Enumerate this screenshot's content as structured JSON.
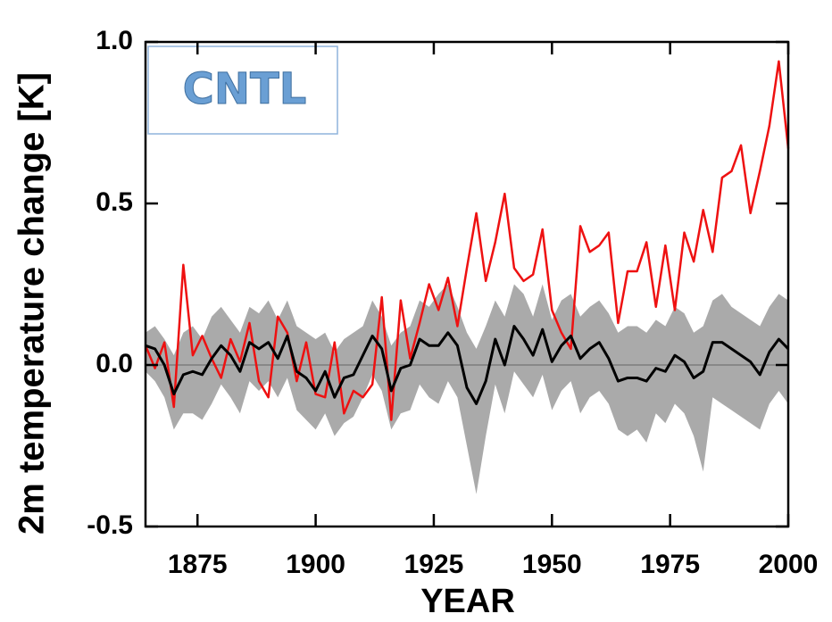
{
  "chart_data": {
    "type": "line",
    "annotation": "CNTL",
    "ylabel": "2m temperature change [K]",
    "xlabel": "YEAR",
    "x": [
      1864,
      1866,
      1868,
      1870,
      1872,
      1874,
      1876,
      1878,
      1880,
      1882,
      1884,
      1886,
      1888,
      1890,
      1892,
      1894,
      1896,
      1898,
      1900,
      1902,
      1904,
      1906,
      1908,
      1910,
      1912,
      1914,
      1916,
      1918,
      1920,
      1922,
      1924,
      1926,
      1928,
      1930,
      1932,
      1934,
      1936,
      1938,
      1940,
      1942,
      1944,
      1946,
      1948,
      1950,
      1952,
      1954,
      1956,
      1958,
      1960,
      1962,
      1964,
      1966,
      1968,
      1970,
      1972,
      1974,
      1976,
      1978,
      1980,
      1982,
      1984,
      1986,
      1988,
      1990,
      1992,
      1994,
      1996,
      1998,
      2000
    ],
    "band": {
      "color": "#aaaaaa",
      "high": [
        0.1,
        0.12,
        0.08,
        0.03,
        0.1,
        0.12,
        0.08,
        0.15,
        0.18,
        0.14,
        0.1,
        0.18,
        0.16,
        0.2,
        0.14,
        0.2,
        0.12,
        0.1,
        0.08,
        0.1,
        0.04,
        0.08,
        0.1,
        0.12,
        0.2,
        0.15,
        0.06,
        0.1,
        0.12,
        0.2,
        0.18,
        0.22,
        0.25,
        0.18,
        0.1,
        0.05,
        0.12,
        0.2,
        0.15,
        0.25,
        0.22,
        0.15,
        0.25,
        0.14,
        0.2,
        0.22,
        0.15,
        0.18,
        0.2,
        0.16,
        0.1,
        0.12,
        0.12,
        0.1,
        0.14,
        0.12,
        0.18,
        0.16,
        0.1,
        0.12,
        0.2,
        0.22,
        0.18,
        0.16,
        0.14,
        0.12,
        0.18,
        0.22,
        0.2
      ],
      "low": [
        -0.02,
        -0.05,
        -0.1,
        -0.2,
        -0.15,
        -0.15,
        -0.17,
        -0.12,
        -0.06,
        -0.1,
        -0.15,
        -0.05,
        -0.08,
        -0.05,
        -0.1,
        -0.04,
        -0.14,
        -0.17,
        -0.2,
        -0.15,
        -0.22,
        -0.18,
        -0.16,
        -0.1,
        -0.03,
        -0.08,
        -0.2,
        -0.15,
        -0.14,
        -0.06,
        -0.1,
        -0.12,
        -0.05,
        -0.1,
        -0.25,
        -0.4,
        -0.22,
        -0.06,
        -0.15,
        -0.02,
        -0.06,
        -0.1,
        -0.03,
        -0.14,
        -0.08,
        -0.05,
        -0.15,
        -0.1,
        -0.08,
        -0.12,
        -0.2,
        -0.22,
        -0.2,
        -0.24,
        -0.15,
        -0.18,
        -0.12,
        -0.15,
        -0.22,
        -0.33,
        -0.1,
        -0.12,
        -0.14,
        -0.16,
        -0.18,
        -0.2,
        -0.12,
        -0.08,
        -0.12
      ]
    },
    "series": [
      {
        "color": "#ee1111",
        "values": [
          0.06,
          -0.01,
          0.07,
          -0.13,
          0.31,
          0.03,
          0.09,
          0.02,
          -0.04,
          0.08,
          0.01,
          0.13,
          -0.05,
          -0.1,
          0.15,
          0.1,
          -0.05,
          0.07,
          -0.09,
          -0.1,
          0.07,
          -0.15,
          -0.08,
          -0.1,
          -0.06,
          0.21,
          -0.17,
          0.2,
          0.02,
          0.13,
          0.25,
          0.17,
          0.27,
          0.12,
          0.3,
          0.47,
          0.26,
          0.38,
          0.53,
          0.3,
          0.26,
          0.28,
          0.42,
          0.17,
          0.1,
          0.05,
          0.43,
          0.35,
          0.37,
          0.41,
          0.13,
          0.29,
          0.29,
          0.38,
          0.18,
          0.37,
          0.17,
          0.41,
          0.32,
          0.48,
          0.35,
          0.58,
          0.6,
          0.68,
          0.47,
          0.6,
          0.74,
          0.94,
          0.67
        ]
      },
      {
        "color": "#000000",
        "values": [
          0.06,
          0.05,
          0.0,
          -0.09,
          -0.03,
          -0.02,
          -0.03,
          0.02,
          0.06,
          0.03,
          -0.02,
          0.07,
          0.05,
          0.07,
          0.02,
          0.09,
          -0.02,
          -0.04,
          -0.08,
          -0.02,
          -0.1,
          -0.04,
          -0.03,
          0.03,
          0.09,
          0.05,
          -0.08,
          -0.01,
          0.0,
          0.08,
          0.06,
          0.06,
          0.1,
          0.06,
          -0.07,
          -0.12,
          -0.05,
          0.08,
          0.0,
          0.12,
          0.08,
          0.03,
          0.11,
          0.01,
          0.06,
          0.09,
          0.02,
          0.05,
          0.07,
          0.02,
          -0.05,
          -0.04,
          -0.04,
          -0.05,
          -0.01,
          -0.02,
          0.03,
          0.01,
          -0.04,
          -0.02,
          0.07,
          0.07,
          0.05,
          0.03,
          0.01,
          -0.03,
          0.04,
          0.08,
          0.05
        ]
      }
    ],
    "xlim": [
      1864,
      2000
    ],
    "xticks": [
      1875,
      1900,
      1925,
      1950,
      1975,
      2000
    ],
    "ylim": [
      -0.5,
      1.0
    ],
    "yticks": [
      {
        "value": 1.0,
        "label": "1.0"
      },
      0.5,
      {
        "value": 0.0,
        "label": "0.0"
      },
      -0.5
    ],
    "zero_line": true
  }
}
